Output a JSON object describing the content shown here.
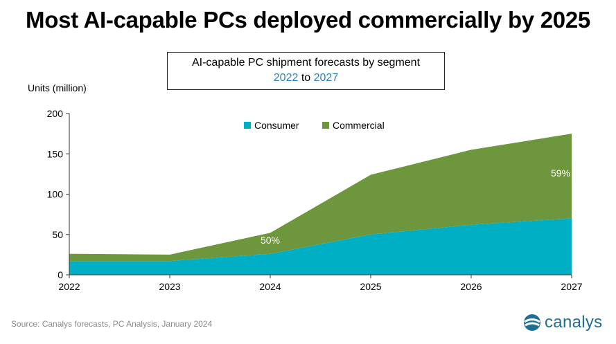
{
  "title": "Most AI-capable PCs deployed commercially by 2025",
  "subtitle": {
    "line1": "AI-capable PC shipment forecasts by segment",
    "from_year": "2022",
    "connector": "to",
    "to_year": "2027"
  },
  "source": "Source: Canalys forecasts, PC Analysis, January 2024",
  "logo_text": "canalys",
  "colors": {
    "consumer": "#00afc4",
    "commercial": "#6e963c",
    "accent": "#2a82b7"
  },
  "chart_data": {
    "type": "area",
    "stacked": true,
    "x": [
      "2022",
      "2023",
      "2024",
      "2025",
      "2026",
      "2027"
    ],
    "series": [
      {
        "name": "Consumer",
        "values": [
          17,
          17,
          26,
          50,
          62,
          70
        ]
      },
      {
        "name": "Commercial",
        "values": [
          9,
          8,
          26,
          74,
          93,
          105
        ]
      }
    ],
    "ylabel": "Units (million)",
    "ylim": [
      0,
      200
    ],
    "yticks": [
      0,
      50,
      100,
      150,
      200
    ],
    "annotations": [
      {
        "text": "50%",
        "x": "2024"
      },
      {
        "text": "59%",
        "x": "2027"
      }
    ],
    "legend": "top-center",
    "grid": false
  }
}
